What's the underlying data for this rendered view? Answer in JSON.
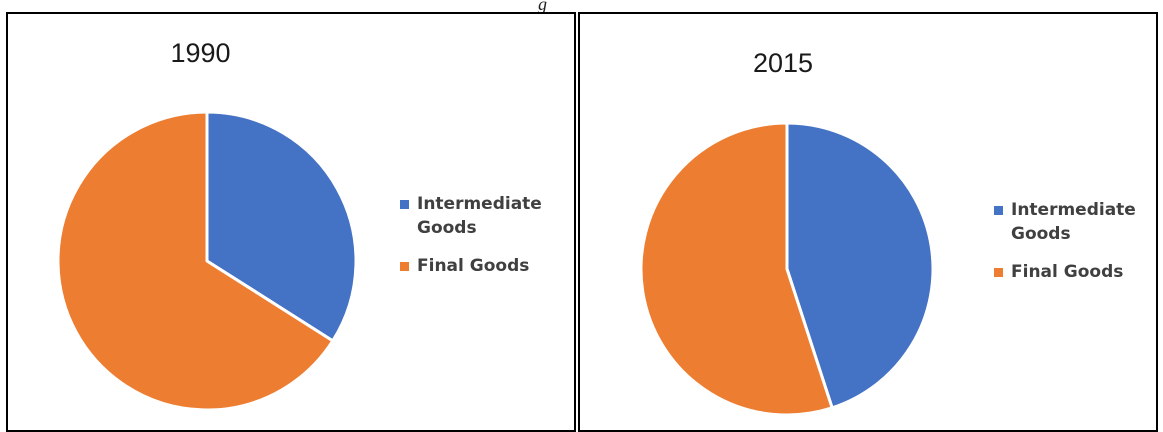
{
  "header_fragment": "g",
  "colors": {
    "intermediate": "#4472c4",
    "final": "#ed7d31"
  },
  "chart_data": [
    {
      "type": "pie",
      "title": "1990",
      "categories": [
        "Intermediate Goods",
        "Final Goods"
      ],
      "values": [
        34,
        66
      ],
      "legend": "right"
    },
    {
      "type": "pie",
      "title": "2015",
      "categories": [
        "Intermediate Goods",
        "Final Goods"
      ],
      "values": [
        45,
        55
      ],
      "legend": "right"
    }
  ]
}
